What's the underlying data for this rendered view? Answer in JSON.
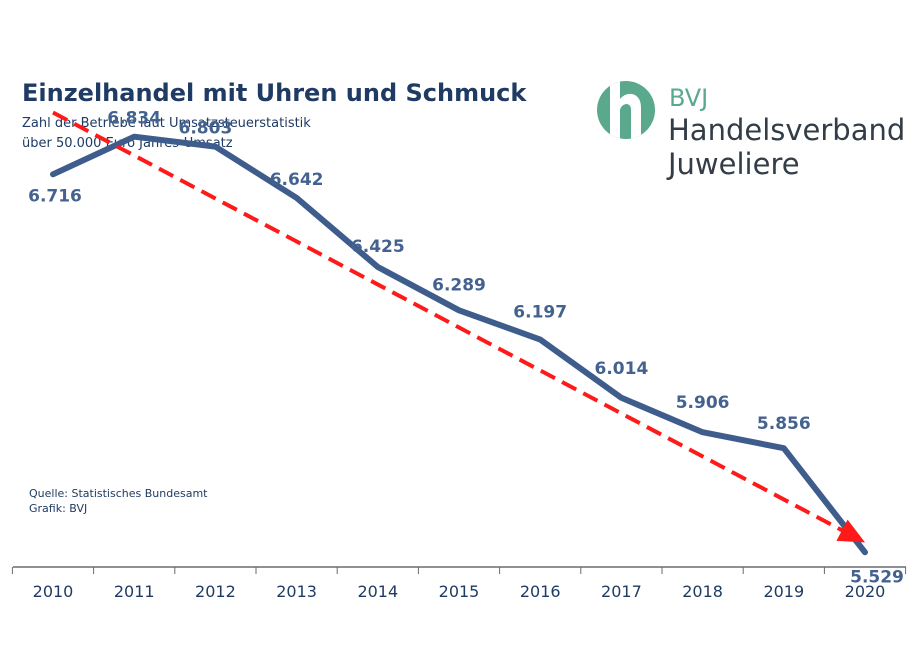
{
  "colors": {
    "series_line": "#3e5c8c",
    "trend_line": "#ff1a1a",
    "label_text": "#44628f",
    "title_text": "#1f3b63",
    "logo_green": "#5aa98c",
    "logo_text": "#333d47",
    "axis": "#6b6b6b"
  },
  "logo": {
    "icon": "h-circle-logo-icon",
    "abbrev": "BVJ",
    "line1": "Handelsverband",
    "line2": "Juweliere"
  },
  "source": {
    "line1": "Quelle: Statistisches Bundesamt",
    "line2": "Grafik: BVJ"
  },
  "chart_data": {
    "type": "line",
    "title": "Einzelhandel mit Uhren und Schmuck",
    "subtitle": [
      "Zahl der Betriebe laut Umsatzsteuerstatistik",
      "über 50.000 Euro Jahres-Umsatz"
    ],
    "xlabel": "",
    "ylabel": "",
    "grid": false,
    "categories": [
      "2010",
      "2011",
      "2012",
      "2013",
      "2014",
      "2015",
      "2016",
      "2017",
      "2018",
      "2019",
      "2020"
    ],
    "series": [
      {
        "name": "Zahl der Betriebe",
        "values": [
          6716,
          6834,
          6803,
          6642,
          6425,
          6289,
          6197,
          6014,
          5906,
          5856,
          5529
        ],
        "labels": [
          "6.716",
          "6.834",
          "6.803",
          "6.642",
          "6.425",
          "6.289",
          "6.197",
          "6.014",
          "5.906",
          "5.856",
          "5.529"
        ]
      }
    ],
    "trend": {
      "name": "Trend",
      "style": "dashed-arrow",
      "start_value": 6910,
      "end_value": 5560
    },
    "ylim": [
      5420,
      7100
    ]
  }
}
